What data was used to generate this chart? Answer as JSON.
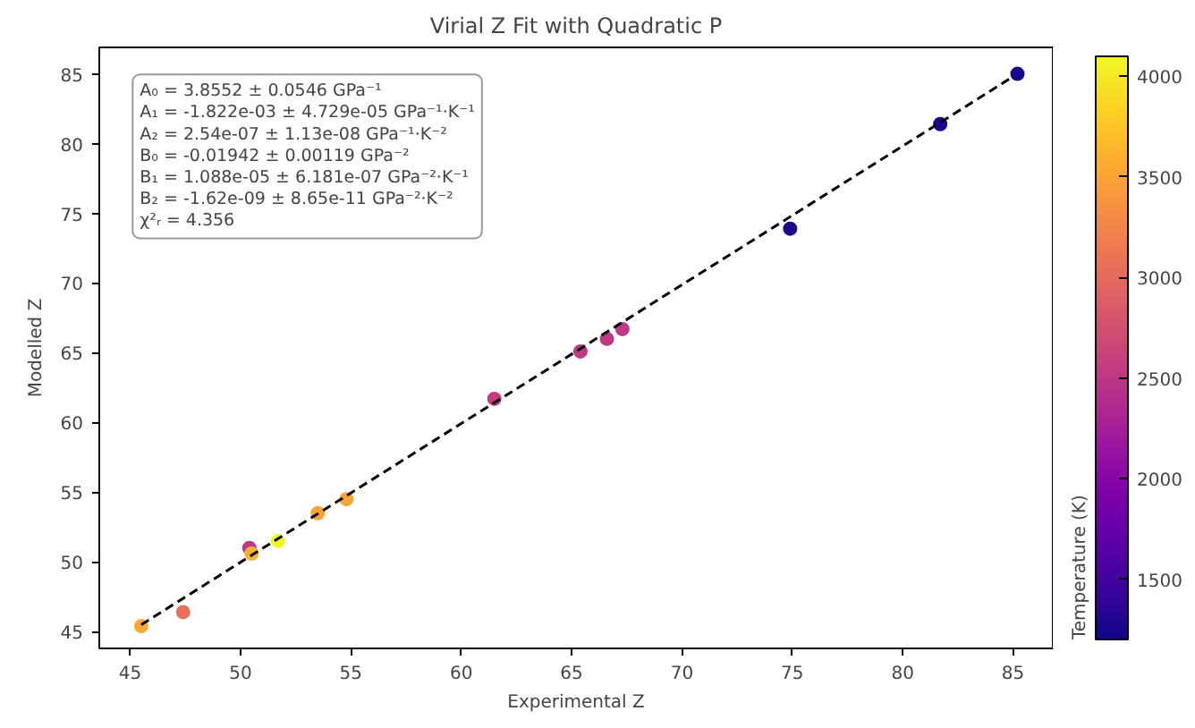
{
  "chart_data": {
    "type": "scatter",
    "title": "Virial Z Fit with Quadratic P",
    "xlabel": "Experimental Z",
    "ylabel": "Modelled Z",
    "clabel": "Temperature (K)",
    "series": [
      {
        "marker": "circle",
        "colors": [
          "#fca835",
          "#e86f5a",
          "#bf3984",
          "#fcb031",
          "#f0f921",
          "#fba238",
          "#fba238",
          "#c43e7f",
          "#bf3984",
          "#bf3984",
          "#bf3984",
          "#1c068c",
          "#1c068c",
          "#14078a"
        ],
        "x": [
          45.5,
          47.4,
          50.4,
          50.5,
          51.7,
          53.5,
          54.8,
          61.5,
          65.4,
          66.6,
          67.3,
          74.9,
          81.7,
          85.2
        ],
        "values": [
          45.4,
          46.4,
          51.0,
          50.6,
          51.5,
          53.5,
          54.5,
          61.7,
          65.1,
          66.0,
          66.7,
          73.9,
          81.4,
          85.0
        ],
        "cvalues": [
          3550,
          3050,
          2500,
          3600,
          4100,
          3500,
          3500,
          2550,
          2500,
          2500,
          2500,
          1300,
          1300,
          1250
        ]
      },
      {
        "type": "line",
        "color": "#000000",
        "line_style": "dashed",
        "x": [
          45.5,
          84.9
        ],
        "values": [
          45.5,
          84.7
        ]
      }
    ],
    "clim": [
      1200,
      4100
    ],
    "cticks": [
      1500,
      2000,
      2500,
      3000,
      3500,
      4000
    ],
    "xlim": [
      43.6,
      86.8
    ],
    "ylim": [
      43.8,
      86.9
    ],
    "xticks": [
      45,
      50,
      55,
      60,
      65,
      70,
      75,
      80,
      85
    ],
    "yticks": [
      45,
      50,
      55,
      60,
      65,
      70,
      75,
      80,
      85
    ],
    "grid": false,
    "annotations": [
      "A₀ = 3.8552 ± 0.0546 GPa⁻¹",
      "A₁ = -1.822e-03 ± 4.729e-05 GPa⁻¹·K⁻¹",
      "A₂ = 2.54e-07 ± 1.13e-08 GPa⁻¹·K⁻²",
      "B₀ = -0.01942 ± 0.00119 GPa⁻²",
      "B₁ = 1.088e-05 ± 6.181e-07 GPa⁻²·K⁻¹",
      "B₂ = -1.62e-09 ± 8.65e-11 GPa⁻²·K⁻²",
      "χ²ᵣ = 4.356"
    ]
  }
}
